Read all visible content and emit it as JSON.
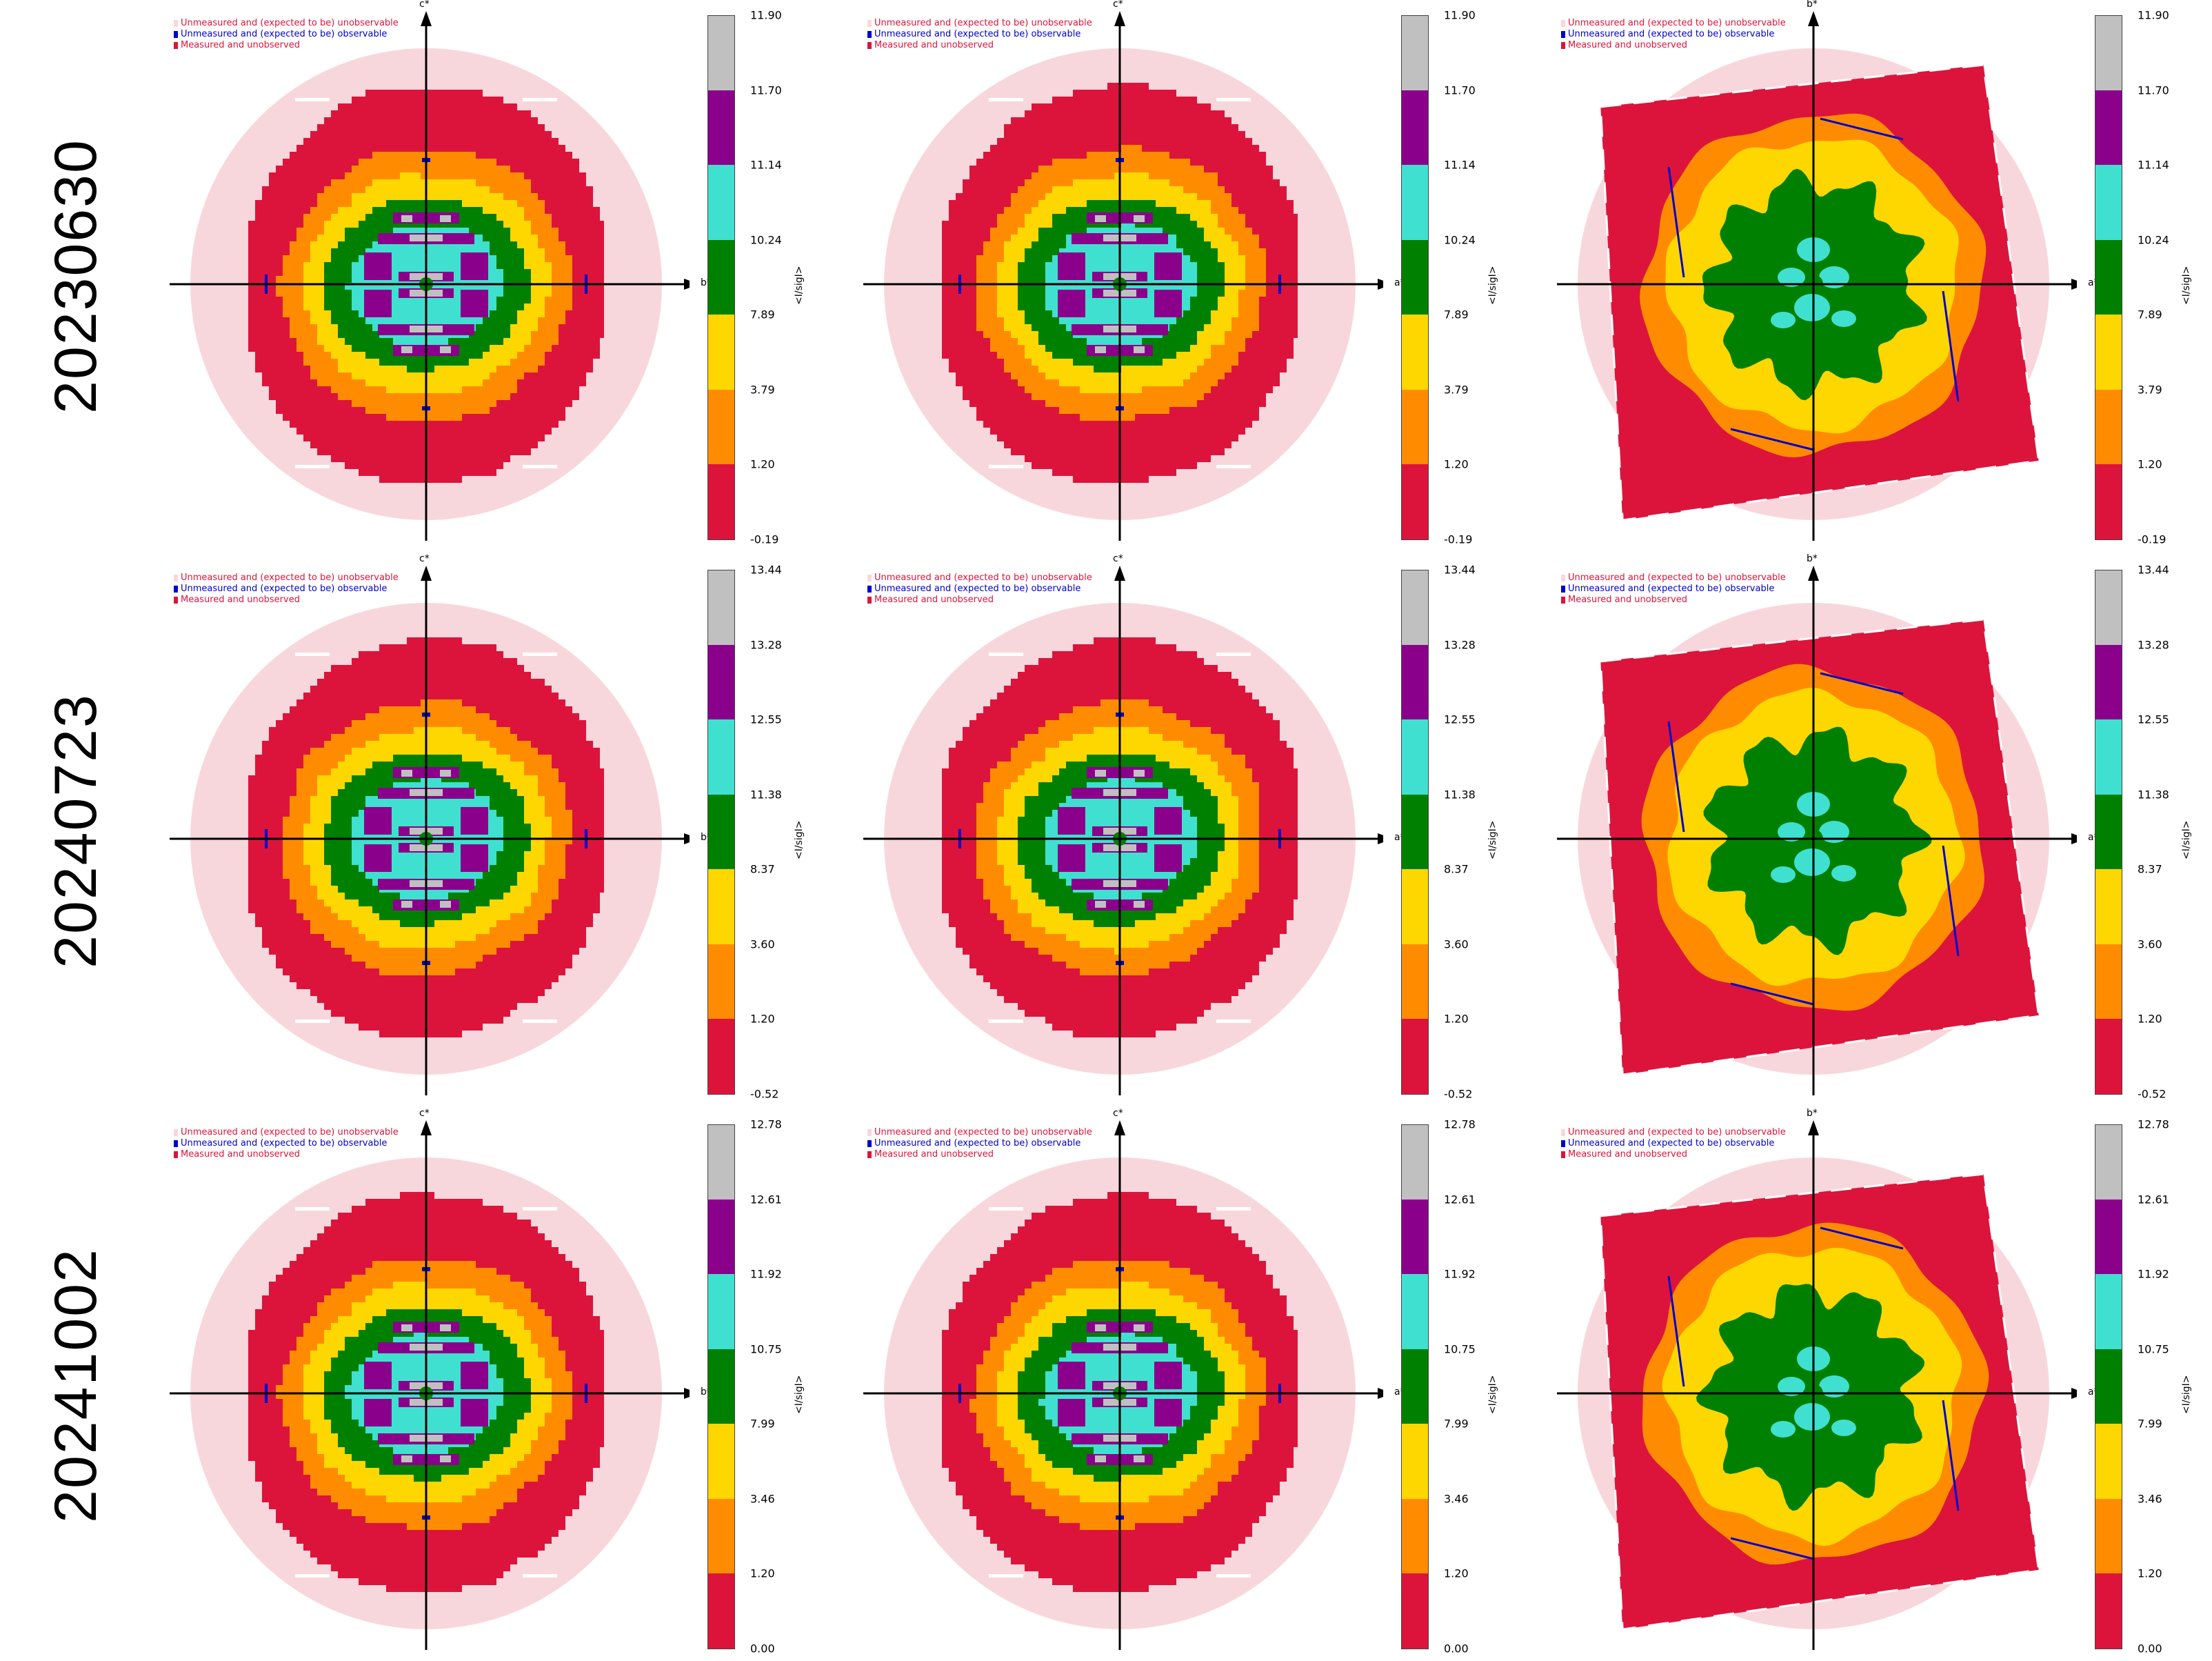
{
  "legend": {
    "unobservable": "Unmeasured and (expected to be) unobservable",
    "observable": "Unmeasured and (expected to be) observable",
    "unobserved": "Measured and unobserved"
  },
  "colorbar_label": "<I/sigI>",
  "colors": {
    "bins": [
      "#dc143c",
      "#ff8c00",
      "#ffd700",
      "#008000",
      "#40e0d0",
      "#8b008b",
      "#c0c0c0"
    ],
    "unobservable": "#f8d7dc",
    "observable": "#0000cd",
    "unobserved": "#dc143c"
  },
  "rows": [
    {
      "label": "20230630",
      "ticks": [
        "11.90",
        "11.70",
        "11.14",
        "10.24",
        "7.89",
        "3.79",
        "1.20",
        "-0.19"
      ],
      "panels": [
        {
          "up": "c*",
          "right": "b*",
          "style": "sym"
        },
        {
          "up": "c*",
          "right": "a*",
          "style": "sym"
        },
        {
          "up": "b*",
          "right": "a*",
          "style": "blob"
        }
      ]
    },
    {
      "label": "20240723",
      "ticks": [
        "13.44",
        "13.28",
        "12.55",
        "11.38",
        "8.37",
        "3.60",
        "1.20",
        "-0.52"
      ],
      "panels": [
        {
          "up": "c*",
          "right": "b*",
          "style": "sym"
        },
        {
          "up": "c*",
          "right": "a*",
          "style": "sym"
        },
        {
          "up": "b*",
          "right": "a*",
          "style": "blob"
        }
      ]
    },
    {
      "label": "20241002",
      "ticks": [
        "12.78",
        "12.61",
        "11.92",
        "10.75",
        "7.99",
        "3.46",
        "1.20",
        "0.00"
      ],
      "panels": [
        {
          "up": "c*",
          "right": "b*",
          "style": "sym"
        },
        {
          "up": "c*",
          "right": "a*",
          "style": "sym"
        },
        {
          "up": "b*",
          "right": "a*",
          "style": "blob"
        }
      ]
    }
  ]
}
